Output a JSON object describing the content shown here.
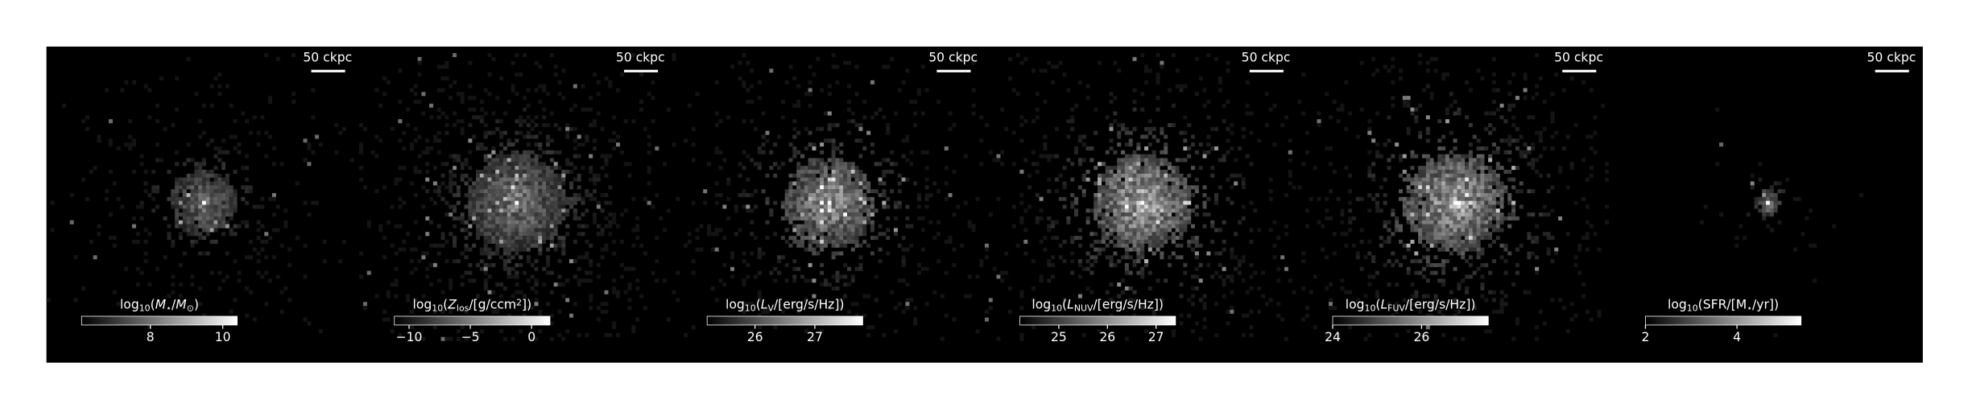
{
  "chart_data": [
    {
      "type": "image",
      "cmap": "gray",
      "scale_bar": "50 ckpc",
      "colorbar": {
        "label": [
          {
            "text": "log"
          },
          {
            "text": "10",
            "style": "sub"
          },
          {
            "text": "("
          },
          {
            "text": "M",
            "style": "italic"
          },
          {
            "text": "⋆",
            "style": "sub"
          },
          {
            "text": "/"
          },
          {
            "text": "M",
            "style": "italic"
          },
          {
            "text": "⊙",
            "style": "sub"
          },
          {
            "text": ")"
          }
        ],
        "lim": [
          6.1,
          10.4
        ],
        "ticks": [
          8,
          10
        ]
      }
    },
    {
      "type": "image",
      "cmap": "gray",
      "scale_bar": "50 ckpc",
      "colorbar": {
        "label": [
          {
            "text": "log"
          },
          {
            "text": "10",
            "style": "sub"
          },
          {
            "text": "("
          },
          {
            "text": "Z",
            "style": "italic"
          },
          {
            "text": "los",
            "style": "sub"
          },
          {
            "text": "/[g/ccm"
          },
          {
            "text": "2",
            "style": "sup"
          },
          {
            "text": "])"
          }
        ],
        "lim": [
          -11.2,
          1.5
        ],
        "ticks": [
          {
            "value": -10,
            "label": "−10"
          },
          {
            "value": -5,
            "label": "−5"
          },
          0
        ]
      }
    },
    {
      "type": "image",
      "cmap": "gray",
      "scale_bar": "50 ckpc",
      "colorbar": {
        "label": [
          {
            "text": "log"
          },
          {
            "text": "10",
            "style": "sub"
          },
          {
            "text": "("
          },
          {
            "text": "L",
            "style": "italic"
          },
          {
            "text": "V",
            "style": "sub"
          },
          {
            "text": "/[erg/s/Hz])"
          }
        ],
        "lim": [
          25.2,
          27.8
        ],
        "ticks": [
          26,
          27
        ]
      }
    },
    {
      "type": "image",
      "cmap": "gray",
      "scale_bar": "50 ckpc",
      "colorbar": {
        "label": [
          {
            "text": "log"
          },
          {
            "text": "10",
            "style": "sub"
          },
          {
            "text": "("
          },
          {
            "text": "L",
            "style": "italic"
          },
          {
            "text": "NUV",
            "style": "sub"
          },
          {
            "text": "/[erg/s/Hz])"
          }
        ],
        "lim": [
          24.2,
          27.4
        ],
        "ticks": [
          25,
          26,
          27
        ]
      }
    },
    {
      "type": "image",
      "cmap": "gray",
      "scale_bar": "50 ckpc",
      "colorbar": {
        "label": [
          {
            "text": "log"
          },
          {
            "text": "10",
            "style": "sub"
          },
          {
            "text": "("
          },
          {
            "text": "L",
            "style": "italic"
          },
          {
            "text": "FUV",
            "style": "sub"
          },
          {
            "text": "/[erg/s/Hz])"
          }
        ],
        "lim": [
          24,
          27.5
        ],
        "ticks": [
          24,
          26
        ]
      }
    },
    {
      "type": "image",
      "cmap": "gray",
      "scale_bar": "50 ckpc",
      "colorbar": {
        "label": [
          {
            "text": "log"
          },
          {
            "text": "10",
            "style": "sub"
          },
          {
            "text": "(SFR/[M"
          },
          {
            "text": "⋆",
            "style": "sub"
          },
          {
            "text": "/yr])"
          }
        ],
        "lim": [
          2,
          5.4
        ],
        "ticks": [
          2,
          4
        ]
      }
    }
  ]
}
